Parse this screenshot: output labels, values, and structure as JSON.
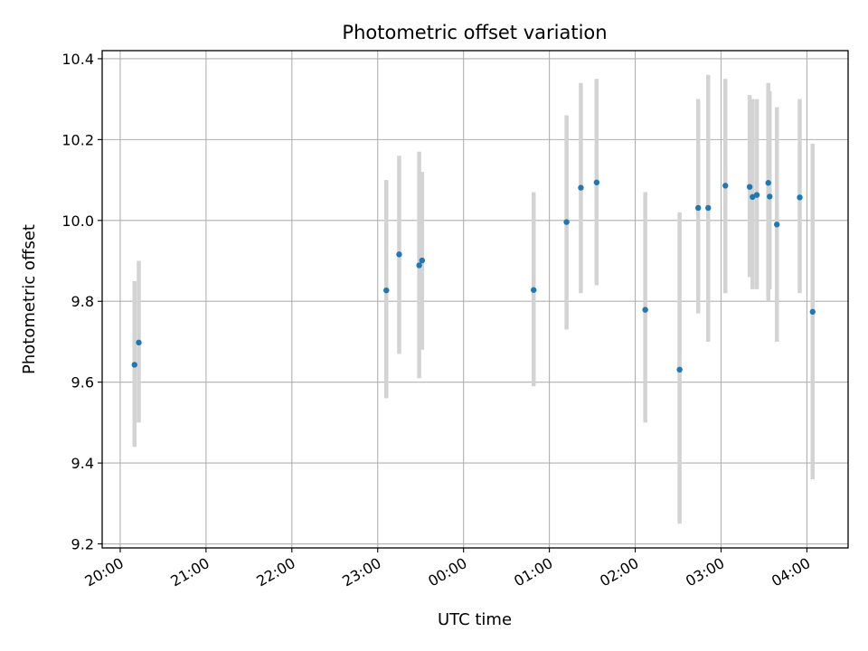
{
  "chart_data": {
    "type": "scatter",
    "title": "Photometric offset variation",
    "xlabel": "UTC time",
    "ylabel": "Photometric offset",
    "x_ticks": [
      "20:00",
      "21:00",
      "22:00",
      "23:00",
      "00:00",
      "01:00",
      "02:00",
      "03:00",
      "04:00"
    ],
    "y_ticks": [
      "9.2",
      "9.4",
      "9.6",
      "9.8",
      "10.0",
      "10.2",
      "10.4"
    ],
    "xlim_hours": [
      19.79,
      28.48
    ],
    "ylim": [
      9.19,
      10.42
    ],
    "grid": true,
    "point_color": "#1f77b4",
    "errorbar_color": "#d3d3d3",
    "points": [
      {
        "t": "20:10",
        "y": 9.643,
        "lo": 9.44,
        "hi": 9.85
      },
      {
        "t": "20:13",
        "y": 9.698,
        "lo": 9.5,
        "hi": 9.9
      },
      {
        "t": "23:06",
        "y": 9.827,
        "lo": 9.56,
        "hi": 10.1
      },
      {
        "t": "23:15",
        "y": 9.916,
        "lo": 9.67,
        "hi": 10.16
      },
      {
        "t": "23:29",
        "y": 9.889,
        "lo": 9.61,
        "hi": 10.17
      },
      {
        "t": "23:31",
        "y": 9.901,
        "lo": 9.68,
        "hi": 10.12
      },
      {
        "t": "00:49",
        "y": 9.828,
        "lo": 9.59,
        "hi": 10.07
      },
      {
        "t": "01:12",
        "y": 9.996,
        "lo": 9.73,
        "hi": 10.26
      },
      {
        "t": "01:22",
        "y": 10.081,
        "lo": 9.82,
        "hi": 10.34
      },
      {
        "t": "01:33",
        "y": 10.094,
        "lo": 9.84,
        "hi": 10.35
      },
      {
        "t": "02:07",
        "y": 9.779,
        "lo": 9.5,
        "hi": 10.07
      },
      {
        "t": "02:31",
        "y": 9.631,
        "lo": 9.25,
        "hi": 10.02
      },
      {
        "t": "02:44",
        "y": 10.031,
        "lo": 9.77,
        "hi": 10.3
      },
      {
        "t": "02:51",
        "y": 10.031,
        "lo": 9.7,
        "hi": 10.36
      },
      {
        "t": "03:03",
        "y": 10.086,
        "lo": 9.82,
        "hi": 10.35
      },
      {
        "t": "03:20",
        "y": 10.083,
        "lo": 9.86,
        "hi": 10.31
      },
      {
        "t": "03:22",
        "y": 10.058,
        "lo": 9.83,
        "hi": 10.3
      },
      {
        "t": "03:25",
        "y": 10.063,
        "lo": 9.83,
        "hi": 10.3
      },
      {
        "t": "03:33",
        "y": 10.093,
        "lo": 9.8,
        "hi": 10.34
      },
      {
        "t": "03:34",
        "y": 10.059,
        "lo": 9.83,
        "hi": 10.32
      },
      {
        "t": "03:39",
        "y": 9.99,
        "lo": 9.7,
        "hi": 10.28
      },
      {
        "t": "03:55",
        "y": 10.057,
        "lo": 9.82,
        "hi": 10.3
      },
      {
        "t": "04:04",
        "y": 9.774,
        "lo": 9.36,
        "hi": 10.19
      }
    ]
  }
}
